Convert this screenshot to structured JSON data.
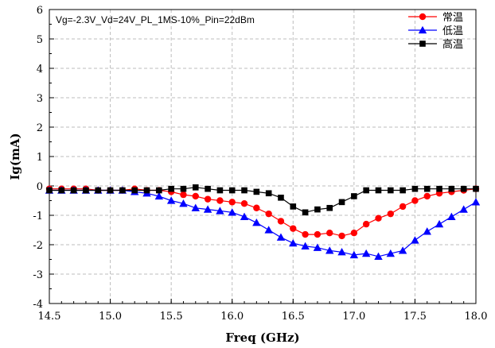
{
  "chart_data": {
    "type": "line",
    "title": "",
    "annotation": "Vg=-2.3V_Vd=24V_PL_1MS-10%_Pin=22dBm",
    "xlabel": "Freq (GHz)",
    "ylabel": "Ig(mA)",
    "xlim": [
      14.5,
      18.0
    ],
    "ylim": [
      -4,
      6
    ],
    "xticks": [
      "14.5",
      "15.0",
      "15.5",
      "16.0",
      "16.5",
      "17.0",
      "17.5",
      "18.0"
    ],
    "yticks": [
      "-4",
      "-3",
      "-2",
      "-1",
      "0",
      "1",
      "2",
      "3",
      "4",
      "5",
      "6"
    ],
    "grid": "dashed",
    "legend_position": "top-right",
    "series": [
      {
        "name": "常温",
        "color": "#ff0000",
        "marker": "circle",
        "x": [
          14.5,
          14.6,
          14.7,
          14.8,
          14.9,
          15.0,
          15.1,
          15.2,
          15.3,
          15.4,
          15.5,
          15.6,
          15.7,
          15.8,
          15.9,
          16.0,
          16.1,
          16.2,
          16.3,
          16.4,
          16.5,
          16.6,
          16.7,
          16.8,
          16.9,
          17.0,
          17.1,
          17.2,
          17.3,
          17.4,
          17.5,
          17.6,
          17.7,
          17.8,
          17.9,
          18.0
        ],
        "y": [
          -0.1,
          -0.1,
          -0.1,
          -0.1,
          -0.15,
          -0.15,
          -0.15,
          -0.1,
          -0.15,
          -0.15,
          -0.2,
          -0.3,
          -0.35,
          -0.45,
          -0.5,
          -0.55,
          -0.6,
          -0.75,
          -0.95,
          -1.2,
          -1.45,
          -1.65,
          -1.65,
          -1.6,
          -1.7,
          -1.6,
          -1.3,
          -1.1,
          -0.95,
          -0.7,
          -0.5,
          -0.35,
          -0.25,
          -0.2,
          -0.15,
          -0.1
        ]
      },
      {
        "name": "低温",
        "color": "#0000ff",
        "marker": "triangle",
        "x": [
          14.5,
          14.6,
          14.7,
          14.8,
          14.9,
          15.0,
          15.1,
          15.2,
          15.3,
          15.4,
          15.5,
          15.6,
          15.7,
          15.8,
          15.9,
          16.0,
          16.1,
          16.2,
          16.3,
          16.4,
          16.5,
          16.6,
          16.7,
          16.8,
          16.9,
          17.0,
          17.1,
          17.2,
          17.3,
          17.4,
          17.5,
          17.6,
          17.7,
          17.8,
          17.9,
          18.0
        ],
        "y": [
          -0.15,
          -0.15,
          -0.15,
          -0.15,
          -0.15,
          -0.15,
          -0.15,
          -0.2,
          -0.25,
          -0.35,
          -0.5,
          -0.6,
          -0.75,
          -0.8,
          -0.85,
          -0.9,
          -1.05,
          -1.25,
          -1.5,
          -1.75,
          -1.95,
          -2.05,
          -2.1,
          -2.2,
          -2.25,
          -2.35,
          -2.3,
          -2.4,
          -2.3,
          -2.2,
          -1.85,
          -1.55,
          -1.3,
          -1.05,
          -0.8,
          -0.55
        ]
      },
      {
        "name": "高温",
        "color": "#000000",
        "marker": "square",
        "x": [
          14.5,
          14.6,
          14.7,
          14.8,
          14.9,
          15.0,
          15.1,
          15.2,
          15.3,
          15.4,
          15.5,
          15.6,
          15.7,
          15.8,
          15.9,
          16.0,
          16.1,
          16.2,
          16.3,
          16.4,
          16.5,
          16.6,
          16.7,
          16.8,
          16.9,
          17.0,
          17.1,
          17.2,
          17.3,
          17.4,
          17.5,
          17.6,
          17.7,
          17.8,
          17.9,
          18.0
        ],
        "y": [
          -0.15,
          -0.15,
          -0.15,
          -0.15,
          -0.15,
          -0.15,
          -0.15,
          -0.15,
          -0.15,
          -0.15,
          -0.1,
          -0.1,
          -0.05,
          -0.1,
          -0.15,
          -0.15,
          -0.15,
          -0.2,
          -0.25,
          -0.4,
          -0.7,
          -0.9,
          -0.8,
          -0.75,
          -0.55,
          -0.35,
          -0.15,
          -0.15,
          -0.15,
          -0.15,
          -0.1,
          -0.1,
          -0.1,
          -0.1,
          -0.1,
          -0.1
        ]
      }
    ]
  }
}
